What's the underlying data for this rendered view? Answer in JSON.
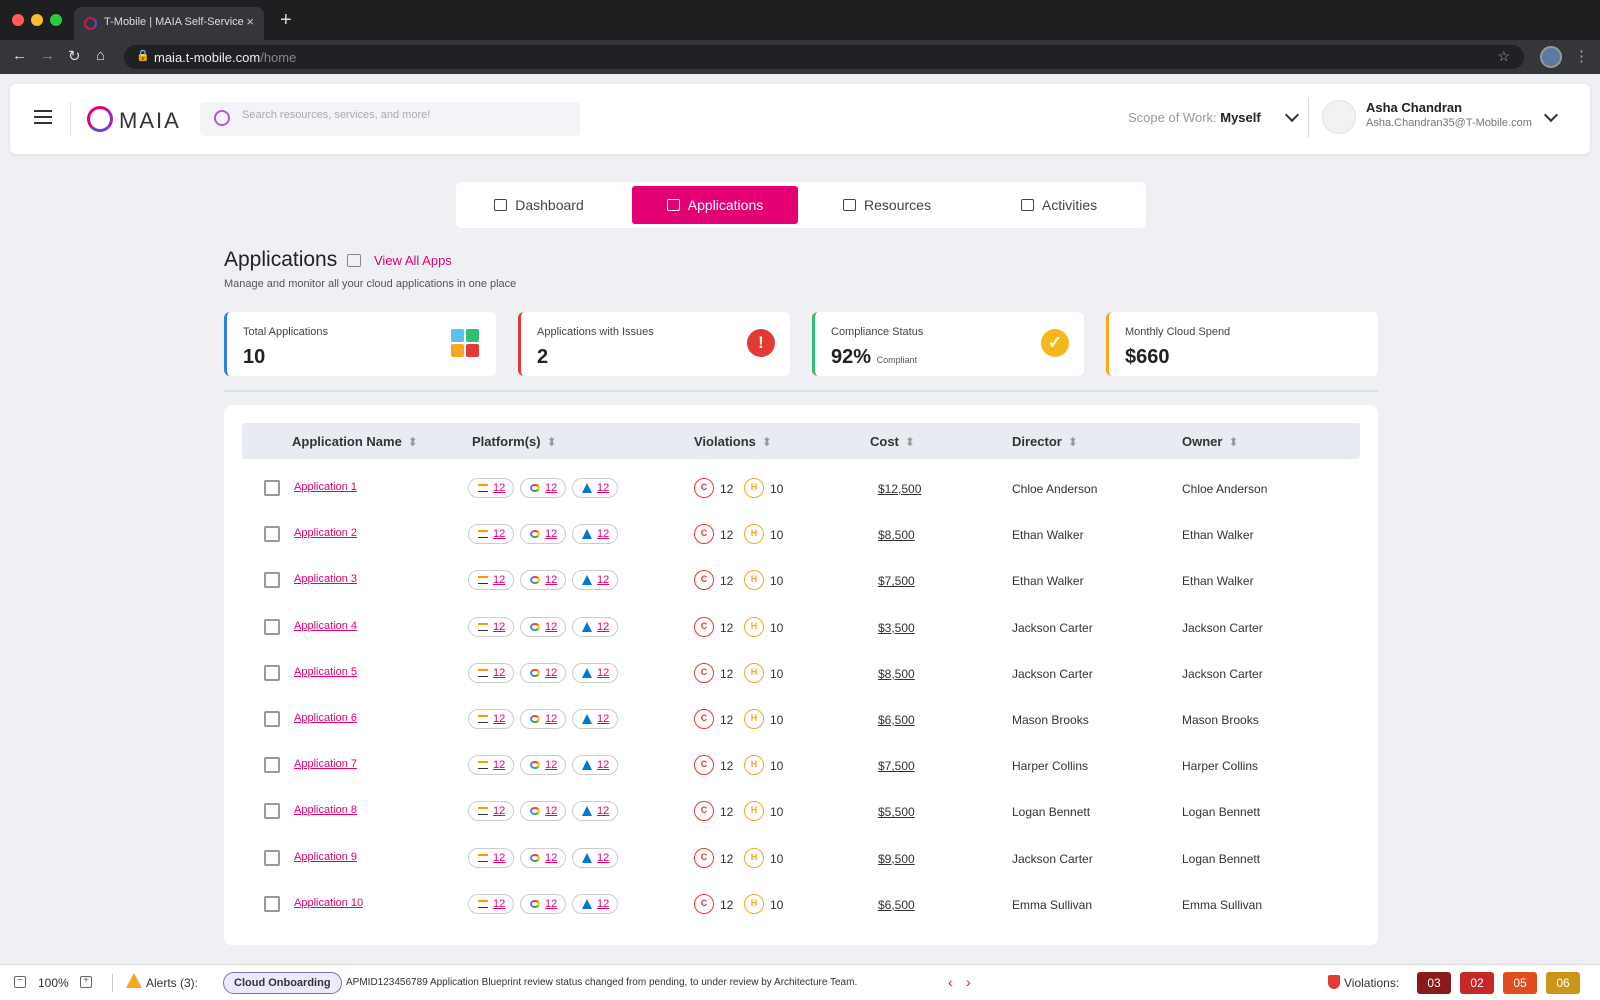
{
  "browser": {
    "tab_title": "T-Mobile | MAIA Self-Service",
    "close_glyph": "×",
    "new_tab_glyph": "+",
    "url_host": "maia.t-mobile.com",
    "url_path": "/home"
  },
  "header": {
    "logo_text": "MAIA",
    "search_placeholder": "Search resources, services, and more!",
    "scope_label": "Scope of Work: ",
    "scope_value": "Myself",
    "user_name": "Asha Chandran",
    "user_email": "Asha.Chandran35@T-Mobile.com"
  },
  "tabs": [
    {
      "label": "Dashboard",
      "active": false
    },
    {
      "label": "Applications",
      "active": true
    },
    {
      "label": "Resources",
      "active": false
    },
    {
      "label": "Activities",
      "active": false
    }
  ],
  "page": {
    "title": "Applications",
    "view_all": "View All Apps",
    "subtitle": "Manage and monitor all your cloud applications in one place"
  },
  "stats": [
    {
      "label": "Total Applications",
      "value": "10",
      "suffix": "",
      "accent": "#2f7fe0",
      "icon": "apps-grid-icon"
    },
    {
      "label": "Applications with Issues",
      "value": "2",
      "suffix": "",
      "accent": "#e53935",
      "icon": "alert-icon",
      "glyph": "!"
    },
    {
      "label": "Compliance Status",
      "value": "92%",
      "suffix": "Compliant",
      "accent": "#2fbf71",
      "icon": "check-icon",
      "glyph": "✓"
    },
    {
      "label": "Monthly Cloud Spend",
      "value": "$660",
      "suffix": "",
      "accent": "#f5a623",
      "icon": ""
    }
  ],
  "table": {
    "columns": [
      "Application Name",
      "Platform(s)",
      "Violations",
      "Cost",
      "Director",
      "Owner"
    ],
    "rows": [
      {
        "name": "Application 1",
        "aws": "12",
        "gcp": "12",
        "azure": "12",
        "critical": "12",
        "high": "10",
        "cost": "$12,500",
        "director": "Chloe Anderson",
        "owner": "Chloe Anderson"
      },
      {
        "name": "Application 2",
        "aws": "12",
        "gcp": "12",
        "azure": "12",
        "critical": "12",
        "high": "10",
        "cost": "$8,500",
        "director": "Ethan Walker",
        "owner": "Ethan Walker"
      },
      {
        "name": "Application 3",
        "aws": "12",
        "gcp": "12",
        "azure": "12",
        "critical": "12",
        "high": "10",
        "cost": "$7,500",
        "director": "Ethan Walker",
        "owner": "Ethan Walker"
      },
      {
        "name": "Application 4",
        "aws": "12",
        "gcp": "12",
        "azure": "12",
        "critical": "12",
        "high": "10",
        "cost": "$3,500",
        "director": "Jackson Carter",
        "owner": "Jackson Carter"
      },
      {
        "name": "Application 5",
        "aws": "12",
        "gcp": "12",
        "azure": "12",
        "critical": "12",
        "high": "10",
        "cost": "$8,500",
        "director": "Jackson Carter",
        "owner": "Jackson Carter"
      },
      {
        "name": "Application 6",
        "aws": "12",
        "gcp": "12",
        "azure": "12",
        "critical": "12",
        "high": "10",
        "cost": "$6,500",
        "director": "Mason Brooks",
        "owner": "Mason Brooks"
      },
      {
        "name": "Application 7",
        "aws": "12",
        "gcp": "12",
        "azure": "12",
        "critical": "12",
        "high": "10",
        "cost": "$7,500",
        "director": "Harper Collins",
        "owner": "Harper Collins"
      },
      {
        "name": "Application 8",
        "aws": "12",
        "gcp": "12",
        "azure": "12",
        "critical": "12",
        "high": "10",
        "cost": "$5,500",
        "director": "Logan Bennett",
        "owner": "Logan Bennett"
      },
      {
        "name": "Application 9",
        "aws": "12",
        "gcp": "12",
        "azure": "12",
        "critical": "12",
        "high": "10",
        "cost": "$9,500",
        "director": "Jackson Carter",
        "owner": "Logan Bennett"
      },
      {
        "name": "Application 10",
        "aws": "12",
        "gcp": "12",
        "azure": "12",
        "critical": "12",
        "high": "10",
        "cost": "$6,500",
        "director": "Emma Sullivan",
        "owner": "Emma Sullivan"
      }
    ],
    "critical_glyph": "C",
    "high_glyph": "H"
  },
  "footer": {
    "zoom": "100%",
    "zoom_out_glyph": "−",
    "zoom_in_glyph": "+",
    "alerts_label": "Alerts (3):",
    "alert_tag": "Cloud Onboarding",
    "alert_message": "APMID123456789 Application Blueprint review status changed from pending, to under review by Architecture Team.",
    "prev_glyph": "‹",
    "next_glyph": "›",
    "violations_label": "Violations:",
    "violation_counts": [
      {
        "value": "03",
        "color": "#8b1a1a"
      },
      {
        "value": "02",
        "color": "#c62828"
      },
      {
        "value": "05",
        "color": "#e04e1f"
      },
      {
        "value": "06",
        "color": "#c9961a"
      }
    ]
  }
}
